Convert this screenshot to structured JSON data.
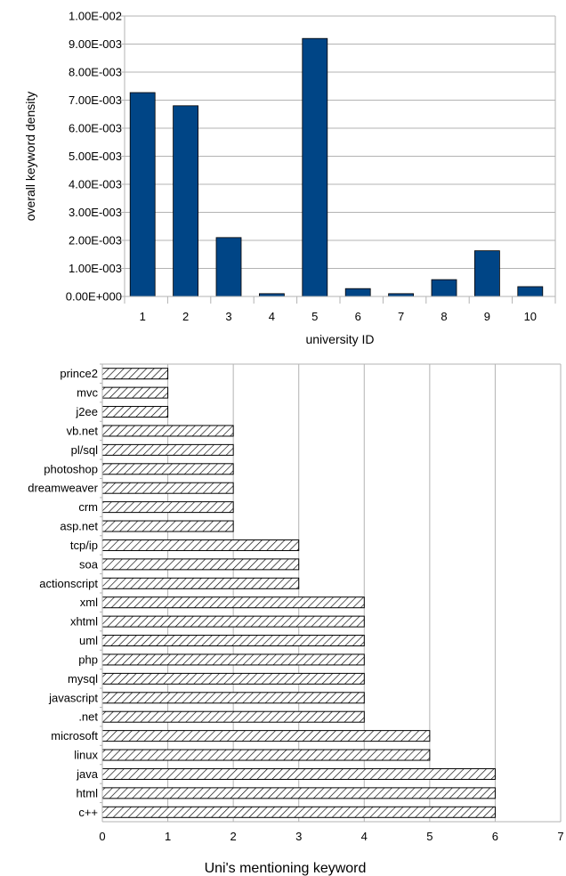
{
  "chart_data": [
    {
      "type": "bar",
      "title": "",
      "xlabel": "university ID",
      "ylabel": "overall keyword density",
      "categories": [
        "1",
        "2",
        "3",
        "4",
        "5",
        "6",
        "7",
        "8",
        "9",
        "10"
      ],
      "values": [
        0.00727,
        0.0068,
        0.0021,
        0.0001,
        0.0092,
        0.00028,
        0.0001,
        0.0006,
        0.00163,
        0.00035
      ],
      "ylim": [
        0,
        0.01
      ],
      "yticks": [
        "0.00E+000",
        "1.00E-003",
        "2.00E-003",
        "3.00E-003",
        "4.00E-003",
        "5.00E-003",
        "6.00E-003",
        "7.00E-003",
        "8.00E-003",
        "9.00E-003",
        "1.00E-002"
      ],
      "grid": true,
      "legend": "none",
      "bar_color": "#004586"
    },
    {
      "type": "bar",
      "orientation": "horizontal",
      "title": "",
      "xlabel": "Uni's mentioning keyword",
      "ylabel": "",
      "categories": [
        "prince2",
        "mvc",
        "j2ee",
        "vb.net",
        "pl/sql",
        "photoshop",
        "dreamweaver",
        "crm",
        "asp.net",
        "tcp/ip",
        "soa",
        "actionscript",
        "xml",
        "xhtml",
        "uml",
        "php",
        "mysql",
        "javascript",
        ".net",
        "microsoft",
        "linux",
        "java",
        "html",
        "c++"
      ],
      "values": [
        1,
        1,
        1,
        2,
        2,
        2,
        2,
        2,
        2,
        3,
        3,
        3,
        4,
        4,
        4,
        4,
        4,
        4,
        4,
        5,
        5,
        6,
        6,
        6
      ],
      "xlim": [
        0,
        7
      ],
      "xticks": [
        "0",
        "1",
        "2",
        "3",
        "4",
        "5",
        "6",
        "7"
      ],
      "grid": true,
      "legend": "none",
      "bar_pattern": "diagonal-hatch"
    }
  ]
}
